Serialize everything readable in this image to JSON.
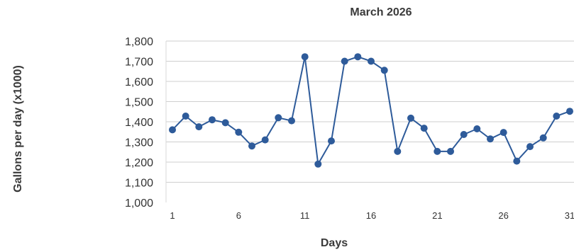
{
  "chart_data": {
    "type": "line",
    "title": "March 2026",
    "xlabel": "Days",
    "ylabel": "Gallons per day  (x1000)",
    "x": [
      1,
      2,
      3,
      4,
      5,
      6,
      7,
      8,
      9,
      10,
      11,
      12,
      13,
      14,
      15,
      16,
      17,
      18,
      19,
      20,
      21,
      22,
      23,
      24,
      25,
      26,
      27,
      28,
      29,
      30,
      31
    ],
    "series": [
      {
        "values": [
          1360,
          1428,
          1375,
          1410,
          1395,
          1348,
          1280,
          1310,
          1420,
          1405,
          1722,
          1190,
          1305,
          1700,
          1722,
          1700,
          1655,
          1253,
          1418,
          1368,
          1253,
          1253,
          1337,
          1365,
          1315,
          1347,
          1205,
          1277,
          1320,
          1428,
          1452
        ]
      }
    ],
    "xticks": [
      "1",
      "6",
      "11",
      "16",
      "21",
      "26",
      "31"
    ],
    "yticks": [
      "1,000",
      "1,100",
      "1,200",
      "1,300",
      "1,400",
      "1,500",
      "1,600",
      "1,700",
      "1,800"
    ],
    "ylim": [
      1000,
      1800
    ],
    "xlim": [
      1,
      31
    ],
    "grid": true,
    "line_color": "#2e5b9a",
    "grid_color": "#cfcfcf"
  }
}
